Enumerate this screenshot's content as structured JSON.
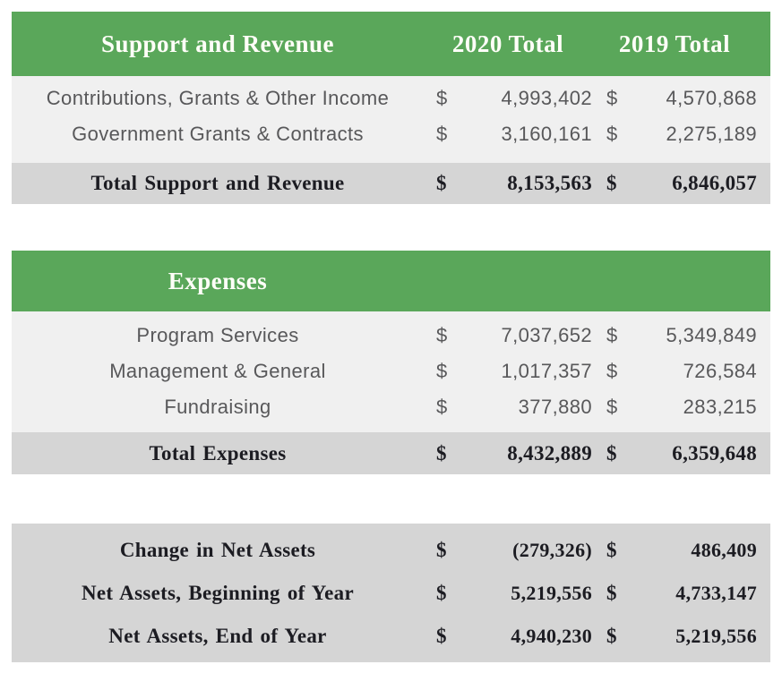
{
  "currency_symbol": "$",
  "columns": {
    "col_2020": "2020 Total",
    "col_2019": "2019 Total"
  },
  "colors": {
    "header_green": "#5aa75a",
    "row_light_gray": "#f0f0f0",
    "total_gray": "#d5d5d5",
    "body_text": "#58585a",
    "total_text": "#1c1c22",
    "header_text": "#ffffff"
  },
  "support_revenue": {
    "header": "Support and Revenue",
    "rows": [
      {
        "label": "Contributions, Grants & Other Income",
        "y2020": "4,993,402",
        "y2019": "4,570,868"
      },
      {
        "label": "Government Grants & Contracts",
        "y2020": "3,160,161",
        "y2019": "2,275,189"
      }
    ],
    "total": {
      "label": "Total Support and Revenue",
      "y2020": "8,153,563",
      "y2019": "6,846,057"
    }
  },
  "expenses": {
    "header": "Expenses",
    "rows": [
      {
        "label": "Program Services",
        "y2020": "7,037,652",
        "y2019": "5,349,849"
      },
      {
        "label": "Management & General",
        "y2020": "1,017,357",
        "y2019": "726,584"
      },
      {
        "label": "Fundraising",
        "y2020": "377,880",
        "y2019": "283,215"
      }
    ],
    "total": {
      "label": "Total Expenses",
      "y2020": "8,432,889",
      "y2019": "6,359,648"
    }
  },
  "net_assets": {
    "rows": [
      {
        "label": "Change in Net Assets",
        "y2020": "(279,326)",
        "y2019": "486,409"
      },
      {
        "label": "Net Assets, Beginning of Year",
        "y2020": "5,219,556",
        "y2019": "4,733,147"
      },
      {
        "label": "Net Assets, End of Year",
        "y2020": "4,940,230",
        "y2019": "5,219,556"
      }
    ]
  }
}
